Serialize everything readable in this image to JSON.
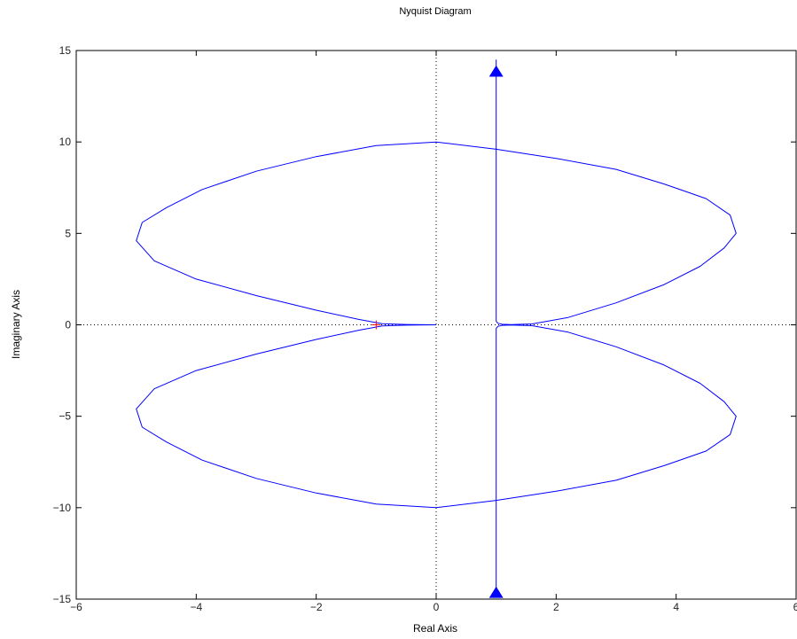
{
  "chart_data": {
    "type": "line",
    "title": "Nyquist Diagram",
    "xlabel": "Real Axis",
    "ylabel": "Imaginary Axis",
    "xlim": [
      -6,
      6
    ],
    "ylim": [
      -15,
      15
    ],
    "xticks": [
      -6,
      -4,
      -2,
      0,
      2,
      4,
      6
    ],
    "yticks": [
      -15,
      -10,
      -5,
      0,
      5,
      10,
      15
    ],
    "xtick_labels": [
      "−6",
      "−4",
      "−2",
      "0",
      "2",
      "4",
      "6"
    ],
    "ytick_labels": [
      "−15",
      "−10",
      "−5",
      "0",
      "5",
      "10",
      "15"
    ],
    "grid": false,
    "crosshair_lines": {
      "x": 0,
      "y": 0,
      "style": "dotted"
    },
    "series": [
      {
        "color": "#0000ff",
        "x": [
          1.0,
          1.0,
          1.0,
          1.0,
          1.0,
          1.0,
          1.03,
          1.1,
          1.25,
          1.6,
          2.2,
          3.0,
          3.8,
          4.4,
          4.8,
          5.0,
          4.9,
          4.5,
          3.8,
          3.0,
          2.0,
          1.0,
          0.0,
          -1.0,
          -2.0,
          -3.0,
          -3.9,
          -4.5,
          -4.9,
          -5.0,
          -4.7,
          -4.0,
          -3.0,
          -2.0,
          -1.3,
          -0.9,
          -0.5,
          -0.2,
          0.0
        ],
        "y": [
          -14.5,
          -10.0,
          -5.0,
          -1.0,
          -0.5,
          -0.2,
          -0.08,
          -0.03,
          -0.01,
          -0.05,
          -0.4,
          -1.2,
          -2.2,
          -3.2,
          -4.2,
          -5.0,
          -6.0,
          -6.9,
          -7.7,
          -8.5,
          -9.1,
          -9.6,
          -10.0,
          -9.8,
          -9.2,
          -8.4,
          -7.4,
          -6.4,
          -5.6,
          -4.6,
          -3.5,
          -2.5,
          -1.6,
          -0.8,
          -0.3,
          -0.06,
          -0.02,
          -0.005,
          0.0
        ]
      },
      {
        "color": "#0000ff",
        "x": [
          1.0,
          1.0,
          1.0,
          1.0,
          1.0,
          1.0,
          1.03,
          1.1,
          1.25,
          1.6,
          2.2,
          3.0,
          3.8,
          4.4,
          4.8,
          5.0,
          4.9,
          4.5,
          3.8,
          3.0,
          2.0,
          1.0,
          0.0,
          -1.0,
          -2.0,
          -3.0,
          -3.9,
          -4.5,
          -4.9,
          -5.0,
          -4.7,
          -4.0,
          -3.0,
          -2.0,
          -1.3,
          -0.9,
          -0.5,
          -0.2,
          0.0
        ],
        "y": [
          14.5,
          10.0,
          5.0,
          1.0,
          0.5,
          0.2,
          0.08,
          0.03,
          0.01,
          0.05,
          0.4,
          1.2,
          2.2,
          3.2,
          4.2,
          5.0,
          6.0,
          6.9,
          7.7,
          8.5,
          9.1,
          9.6,
          10.0,
          9.8,
          9.2,
          8.4,
          7.4,
          6.4,
          5.6,
          4.6,
          3.5,
          2.5,
          1.6,
          0.8,
          0.3,
          0.06,
          0.02,
          0.005,
          0.0
        ]
      }
    ],
    "arrows": [
      {
        "x": 1.0,
        "y": 13.8,
        "direction": "up",
        "color": "#0000ff"
      },
      {
        "x": 1.0,
        "y": -14.7,
        "direction": "up",
        "color": "#0000ff"
      }
    ],
    "critical_point": {
      "x": -1,
      "y": 0,
      "marker": "+",
      "color": "#ff0000"
    }
  }
}
